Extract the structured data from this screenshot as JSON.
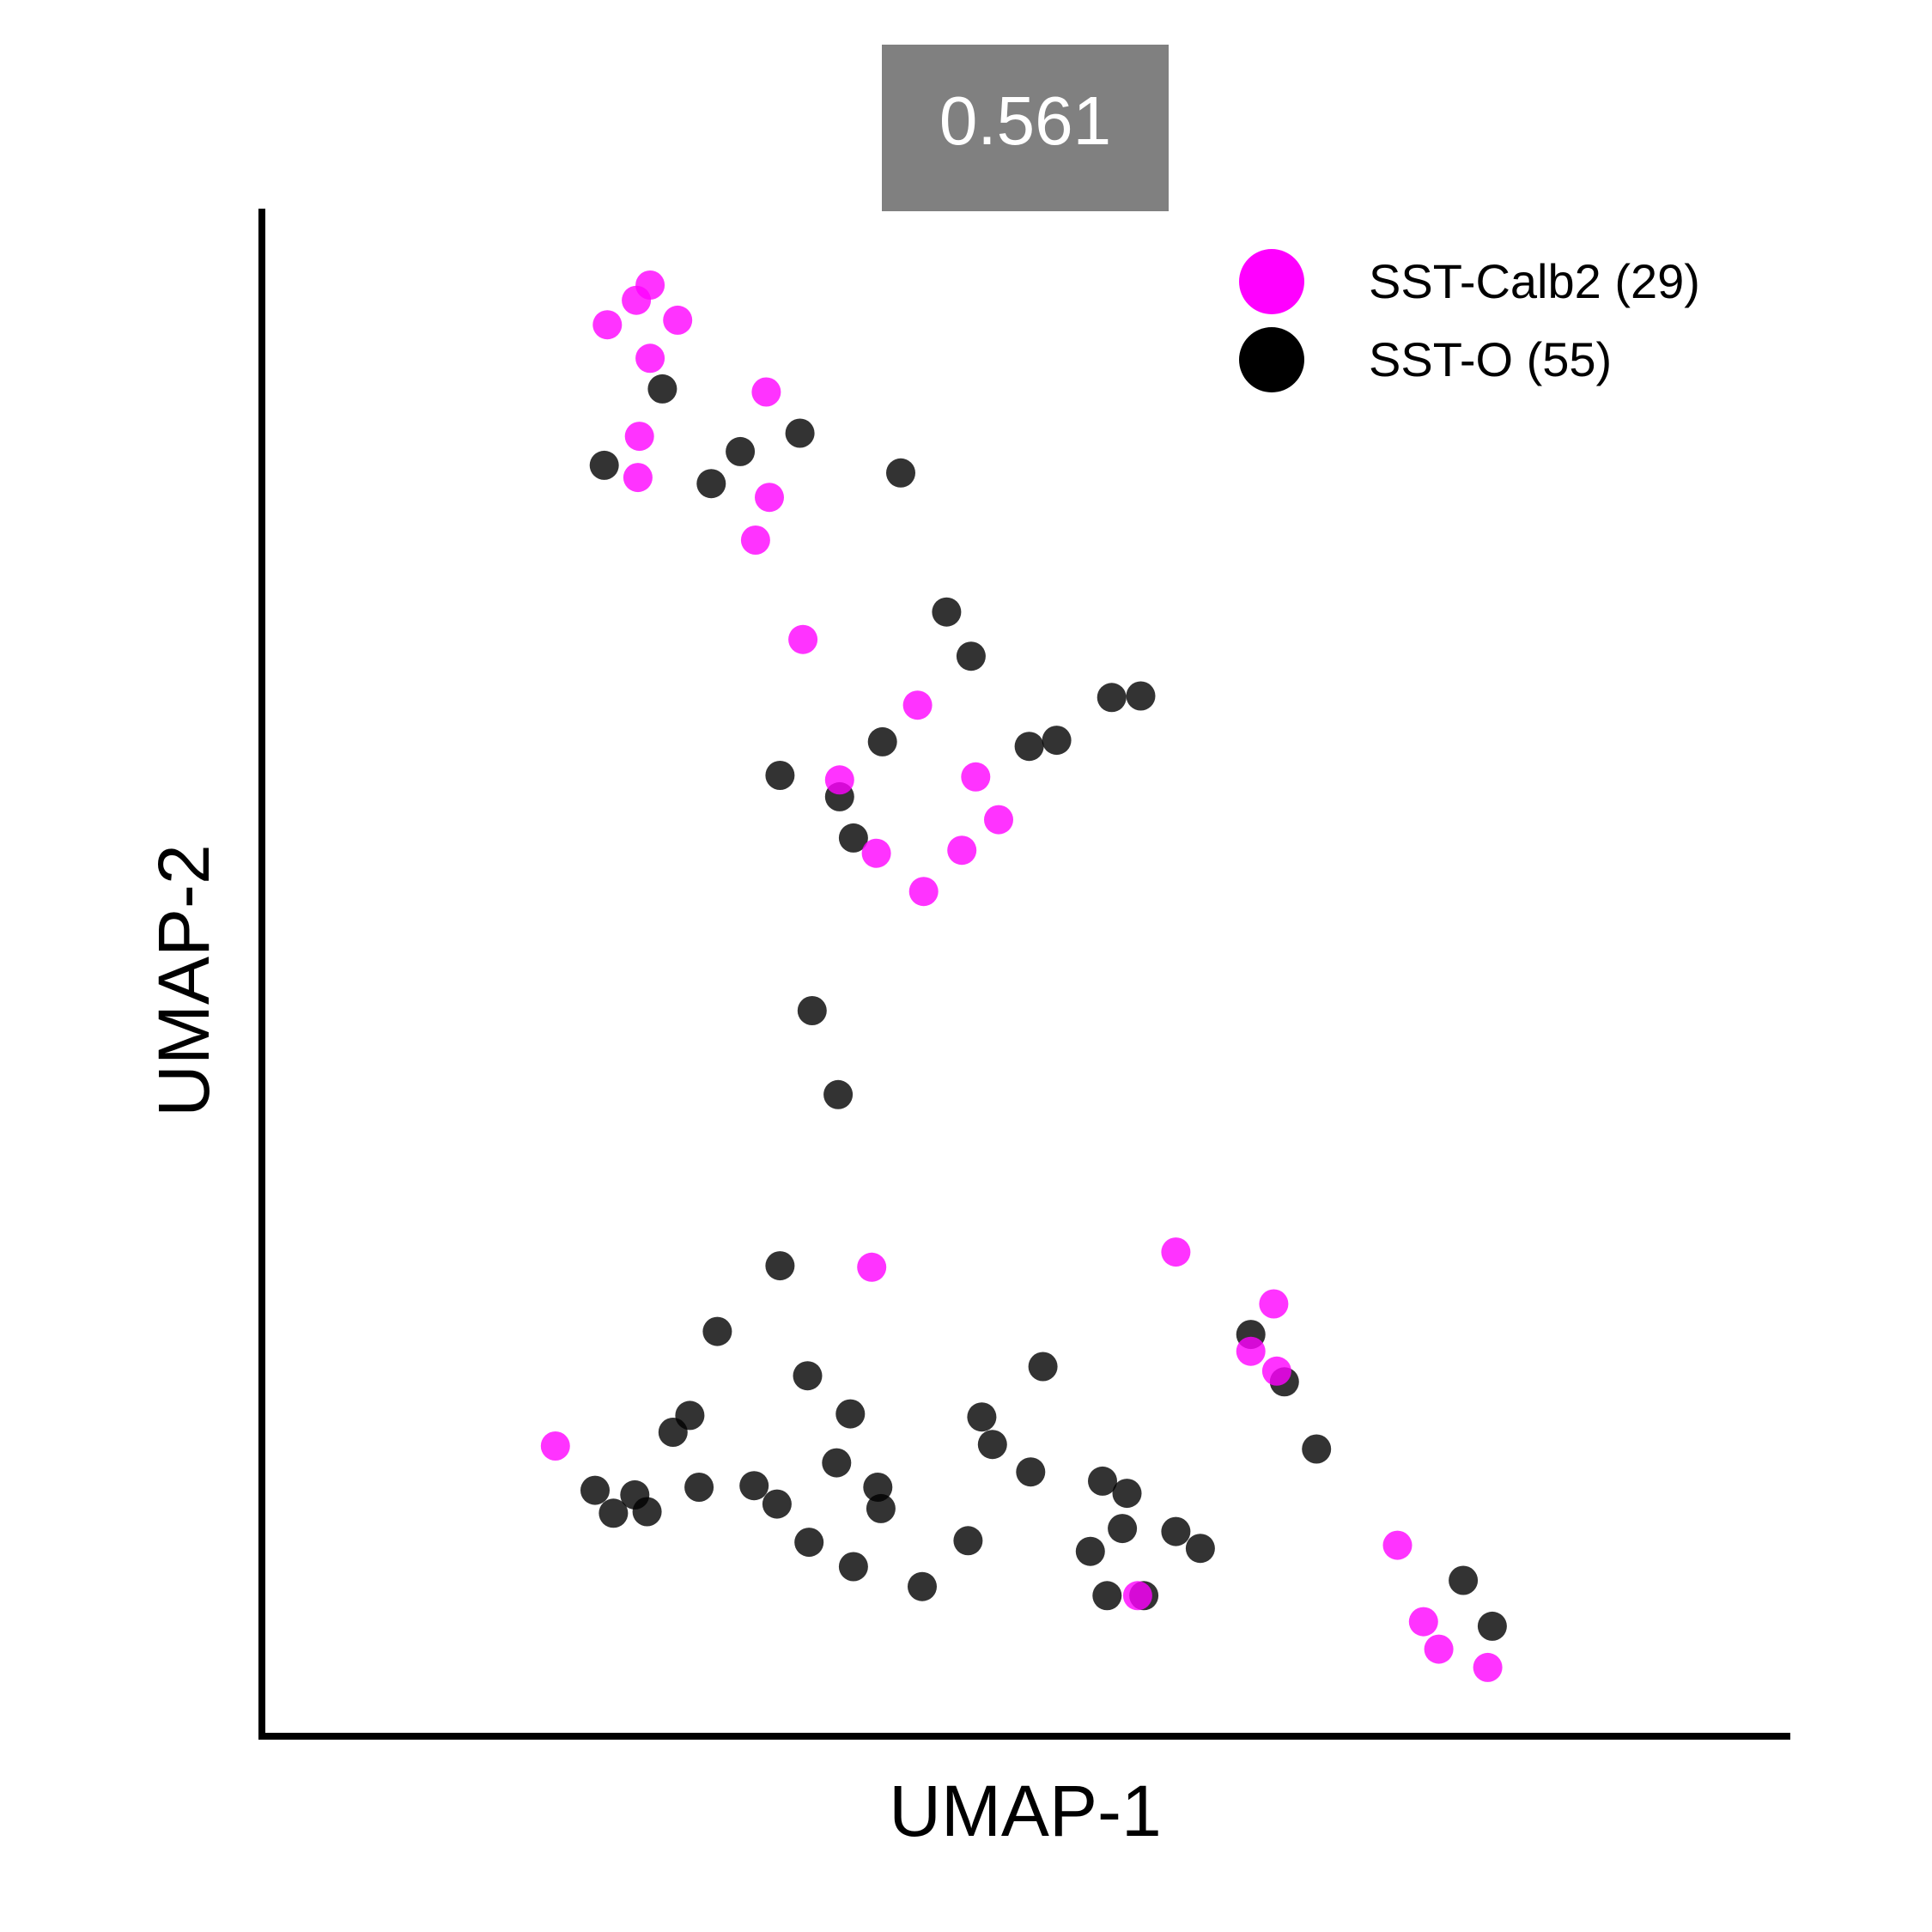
{
  "chart_data": {
    "type": "scatter",
    "title": "0.561",
    "xlabel": "UMAP-1",
    "ylabel": "UMAP-2",
    "xlim": [
      0,
      100
    ],
    "ylim": [
      0,
      100
    ],
    "grid": false,
    "legend_position": "top-right",
    "colors": {
      "SST-Calb2 (29)": "#ff00ff",
      "SST-O (55)": "#000000",
      "badge": "#808080"
    },
    "series": [
      {
        "name": "SST-Calb2 (29)",
        "color": "#ff00ff",
        "points": [
          [
            25.4,
            95.0
          ],
          [
            24.5,
            94.0
          ],
          [
            27.2,
            92.7
          ],
          [
            22.6,
            92.4
          ],
          [
            25.4,
            90.2
          ],
          [
            33.0,
            88.0
          ],
          [
            24.7,
            85.1
          ],
          [
            24.6,
            82.4
          ],
          [
            33.2,
            81.1
          ],
          [
            32.3,
            78.3
          ],
          [
            35.4,
            71.8
          ],
          [
            42.9,
            67.5
          ],
          [
            37.8,
            62.6
          ],
          [
            46.7,
            62.8
          ],
          [
            48.2,
            60.0
          ],
          [
            40.2,
            57.8
          ],
          [
            45.8,
            58.0
          ],
          [
            43.3,
            55.3
          ],
          [
            39.9,
            30.7
          ],
          [
            59.8,
            31.7
          ],
          [
            66.2,
            28.3
          ],
          [
            64.7,
            25.2
          ],
          [
            66.4,
            23.9
          ],
          [
            19.2,
            19.0
          ],
          [
            57.3,
            9.2
          ],
          [
            74.3,
            12.5
          ],
          [
            76.0,
            7.5
          ],
          [
            77.0,
            5.7
          ],
          [
            80.2,
            4.5
          ]
        ]
      },
      {
        "name": "SST-O (55)",
        "color": "#000000",
        "points": [
          [
            26.2,
            88.2
          ],
          [
            22.4,
            83.2
          ],
          [
            31.3,
            84.1
          ],
          [
            35.2,
            85.3
          ],
          [
            41.8,
            82.7
          ],
          [
            29.4,
            82.0
          ],
          [
            44.8,
            73.6
          ],
          [
            46.4,
            70.7
          ],
          [
            57.5,
            68.1
          ],
          [
            55.6,
            68.0
          ],
          [
            40.6,
            65.1
          ],
          [
            52.0,
            65.2
          ],
          [
            50.2,
            64.8
          ],
          [
            33.9,
            62.9
          ],
          [
            37.8,
            61.5
          ],
          [
            38.7,
            58.8
          ],
          [
            36.0,
            47.5
          ],
          [
            37.7,
            42.0
          ],
          [
            33.9,
            30.8
          ],
          [
            29.8,
            26.5
          ],
          [
            35.7,
            23.6
          ],
          [
            51.1,
            24.2
          ],
          [
            28.0,
            21.0
          ],
          [
            38.5,
            21.1
          ],
          [
            47.1,
            20.9
          ],
          [
            26.9,
            19.9
          ],
          [
            47.8,
            19.1
          ],
          [
            37.6,
            17.9
          ],
          [
            50.3,
            17.3
          ],
          [
            66.9,
            23.2
          ],
          [
            64.7,
            26.3
          ],
          [
            69.0,
            18.8
          ],
          [
            55.0,
            16.7
          ],
          [
            56.6,
            15.9
          ],
          [
            21.8,
            16.1
          ],
          [
            24.4,
            15.8
          ],
          [
            28.6,
            16.3
          ],
          [
            32.2,
            16.4
          ],
          [
            40.3,
            16.3
          ],
          [
            23.0,
            14.6
          ],
          [
            25.2,
            14.7
          ],
          [
            33.7,
            15.2
          ],
          [
            40.5,
            14.9
          ],
          [
            56.3,
            13.6
          ],
          [
            35.8,
            12.7
          ],
          [
            46.2,
            12.8
          ],
          [
            59.8,
            13.4
          ],
          [
            61.4,
            12.3
          ],
          [
            54.2,
            12.1
          ],
          [
            38.7,
            11.1
          ],
          [
            43.2,
            9.8
          ],
          [
            55.3,
            9.2
          ],
          [
            57.7,
            9.2
          ],
          [
            78.6,
            10.2
          ],
          [
            80.5,
            7.2
          ]
        ]
      }
    ]
  }
}
